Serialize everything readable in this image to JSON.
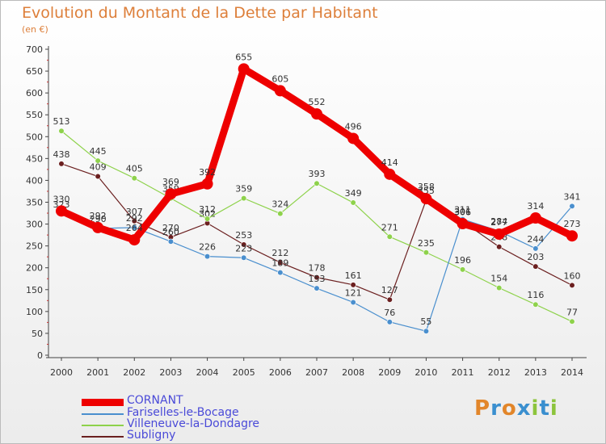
{
  "title": "Evolution du Montant de la Dette par Habitant",
  "subtitle": "(en €)",
  "logo": {
    "text": "Proxiti",
    "colors": [
      "#e2862a",
      "#3a8fcf",
      "#e2862a",
      "#3a8fcf",
      "#8cc43c",
      "#3a8fcf",
      "#8cc43c"
    ]
  },
  "chart_data": {
    "type": "line",
    "title": "Evolution du Montant de la Dette par Habitant",
    "subtitle": "(en €)",
    "x": [
      "2000",
      "2001",
      "2002",
      "2003",
      "2004",
      "2005",
      "2006",
      "2007",
      "2008",
      "2009",
      "2010",
      "2011",
      "2012",
      "2013",
      "2014"
    ],
    "ylim": [
      0,
      700
    ],
    "yticks": [
      0,
      50,
      100,
      150,
      200,
      250,
      300,
      350,
      400,
      450,
      500,
      550,
      600,
      650,
      700
    ],
    "grid": false,
    "legend_position": "bottom-left",
    "series": [
      {
        "name": "CORNANT",
        "color": "#ee0000",
        "values": [
          330,
          292,
          264,
          369,
          392,
          655,
          605,
          552,
          496,
          414,
          358,
          301,
          277,
          314,
          273
        ]
      },
      {
        "name": "Fariselles-le-Bocage",
        "color": "#4a8fce",
        "values": [
          323,
          290,
          292,
          260,
          226,
          223,
          189,
          153,
          121,
          76,
          55,
          311,
          284,
          244,
          341
        ]
      },
      {
        "name": "Villeneuve-la-Dondagre",
        "color": "#8ed24b",
        "values": [
          513,
          445,
          405,
          359,
          312,
          359,
          324,
          393,
          349,
          271,
          235,
          196,
          154,
          116,
          77
        ]
      },
      {
        "name": "Subligny",
        "color": "#6b1f1f",
        "values": [
          438,
          409,
          307,
          270,
          302,
          253,
          212,
          178,
          161,
          127,
          355,
          306,
          248,
          203,
          160
        ]
      }
    ]
  }
}
